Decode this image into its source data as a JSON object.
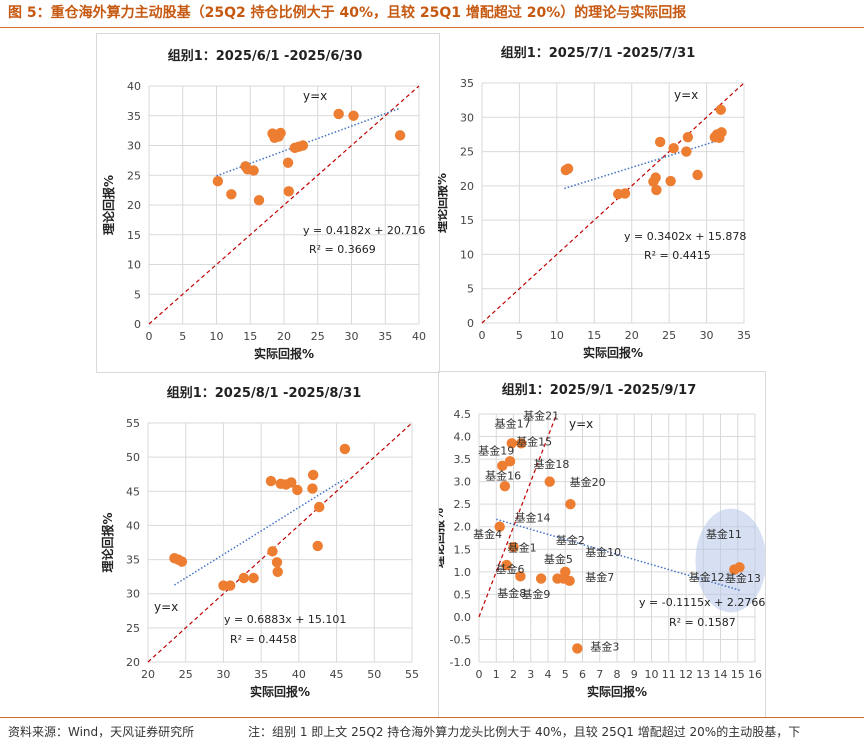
{
  "header": {
    "title": "图 5：重仓海外算力主动股基（25Q2 持仓比例大于 40%，且较 25Q1 增配超过 20%）的理论与实际回报"
  },
  "footer": {
    "source": "资料来源：Wind，天风证券研究所",
    "note": "注：组别 1 即上文 25Q2 持仓海外算力龙头比例大于 40%，且较 25Q1 增配超过 20%的主动股基，下"
  },
  "colors": {
    "accent": "#c65911",
    "point": "#ed7d31",
    "diag": "#c00000",
    "trend": "#4472c4",
    "highlight": "#b4c7e7"
  },
  "chart_data": [
    {
      "type": "scatter",
      "title": "组别1：2025/6/1 -2025/6/30",
      "xlabel": "实际回报%",
      "ylabel": "理论回报%",
      "xlim": [
        0,
        40
      ],
      "ylim": [
        0,
        40
      ],
      "xstep": 5,
      "ystep": 5,
      "diag_label": "y=x",
      "equation": "y = 0.4182x + 20.716",
      "r2": "R² = 0.3669",
      "trend": {
        "slope": 0.4182,
        "intercept": 20.716,
        "x": [
          10,
          37
        ]
      },
      "points": [
        [
          10.2,
          24
        ],
        [
          12.2,
          21.8
        ],
        [
          14.3,
          26.5
        ],
        [
          14.6,
          26
        ],
        [
          15.5,
          25.8
        ],
        [
          16.3,
          20.8
        ],
        [
          18.3,
          32
        ],
        [
          18.6,
          31.3
        ],
        [
          18.9,
          31.8
        ],
        [
          19.2,
          31.5
        ],
        [
          19.5,
          32.1
        ],
        [
          20.6,
          27.1
        ],
        [
          20.7,
          22.3
        ],
        [
          21.6,
          29.6
        ],
        [
          22.2,
          29.8
        ],
        [
          22.8,
          30
        ],
        [
          28.1,
          35.3
        ],
        [
          30.3,
          35
        ],
        [
          37.2,
          31.7
        ]
      ],
      "labels": []
    },
    {
      "type": "scatter",
      "title": "组别1：2025/7/1 -2025/7/31",
      "xlabel": "实际回报%",
      "ylabel": "理论回报%",
      "xlim": [
        0,
        35
      ],
      "ylim": [
        0,
        35
      ],
      "xstep": 5,
      "ystep": 5,
      "diag_label": "y=x",
      "equation": "y = 0.3402x + 15.878",
      "r2": "R² = 0.4415",
      "trend": {
        "slope": 0.3402,
        "intercept": 15.878,
        "x": [
          11,
          32
        ]
      },
      "points": [
        [
          11.2,
          22.3
        ],
        [
          11.5,
          22.5
        ],
        [
          18.2,
          18.8
        ],
        [
          19.1,
          18.9
        ],
        [
          22.9,
          20.6
        ],
        [
          23.2,
          21.2
        ],
        [
          23.3,
          19.4
        ],
        [
          23.8,
          26.4
        ],
        [
          25.2,
          20.7
        ],
        [
          25.6,
          25.5
        ],
        [
          27.3,
          25
        ],
        [
          27.5,
          27.1
        ],
        [
          28.8,
          21.6
        ],
        [
          31.1,
          27.1
        ],
        [
          31.4,
          27.5
        ],
        [
          31.7,
          27
        ],
        [
          31.9,
          31.1
        ],
        [
          32,
          27.8
        ]
      ],
      "labels": []
    },
    {
      "type": "scatter",
      "title": "组别1：2025/8/1 -2025/8/31",
      "xlabel": "实际回报%",
      "ylabel": "理论回报%",
      "xlim": [
        20,
        55
      ],
      "ylim": [
        20,
        55
      ],
      "xstep": 5,
      "ystep": 5,
      "diag_label": "y=x",
      "equation": "y = 0.6883x + 15.101",
      "r2": "R² = 0.4458",
      "trend": {
        "slope": 0.6883,
        "intercept": 15.101,
        "x": [
          23.5,
          46
        ]
      },
      "points": [
        [
          23.5,
          35.2
        ],
        [
          24,
          35
        ],
        [
          24.5,
          34.7
        ],
        [
          30,
          31.2
        ],
        [
          30.9,
          31.2
        ],
        [
          32.7,
          32.3
        ],
        [
          34,
          32.3
        ],
        [
          36.3,
          46.5
        ],
        [
          36.5,
          36.2
        ],
        [
          37.1,
          34.6
        ],
        [
          37.2,
          33.2
        ],
        [
          37.6,
          46.1
        ],
        [
          38.3,
          46
        ],
        [
          39,
          46.3
        ],
        [
          39.8,
          45.2
        ],
        [
          41.8,
          45.4
        ],
        [
          41.9,
          47.4
        ],
        [
          42.5,
          37
        ],
        [
          42.7,
          42.7
        ],
        [
          46.1,
          51.2
        ]
      ],
      "labels": []
    },
    {
      "type": "scatter",
      "title": "组别1：2025/9/1 -2025/9/17",
      "xlabel": "实际回报%",
      "ylabel": "理论回报%",
      "xlim": [
        0,
        16
      ],
      "ylim": [
        -1.0,
        4.5
      ],
      "xstep": 1,
      "ystep": 0.5,
      "ydec": 1,
      "diag_label": "y=x",
      "equation": "y = -0.1115x + 2.2766",
      "r2": "R² = 0.1587",
      "trend": {
        "slope": -0.1115,
        "intercept": 2.2766,
        "x": [
          1.0,
          15.2
        ]
      },
      "highlight": {
        "cx": 14.6,
        "cy": 1.25,
        "rx": 2.05,
        "ry": 1.15
      },
      "points": [
        [
          1.2,
          2.0
        ],
        [
          1.35,
          3.35
        ],
        [
          1.5,
          2.9
        ],
        [
          1.6,
          1.15
        ],
        [
          1.8,
          3.45
        ],
        [
          1.9,
          3.85
        ],
        [
          2.0,
          1.55
        ],
        [
          2.4,
          0.9
        ],
        [
          2.45,
          3.85
        ],
        [
          3.6,
          0.85
        ],
        [
          4.1,
          3.0
        ],
        [
          4.55,
          0.85
        ],
        [
          4.9,
          0.85
        ],
        [
          5.0,
          1.0
        ],
        [
          5.25,
          0.8
        ],
        [
          5.3,
          2.5
        ],
        [
          5.7,
          -0.7
        ],
        [
          14.8,
          1.05
        ],
        [
          15.1,
          1.1
        ]
      ],
      "labels": [
        {
          "text": "基金21",
          "x": 3.6,
          "y": 4.38
        },
        {
          "text": "基金17",
          "x": 1.95,
          "y": 4.2
        },
        {
          "text": "基金15",
          "x": 3.2,
          "y": 3.8
        },
        {
          "text": "基金19",
          "x": 1.0,
          "y": 3.6
        },
        {
          "text": "基金18",
          "x": 4.2,
          "y": 3.3
        },
        {
          "text": "基金16",
          "x": 1.4,
          "y": 3.05
        },
        {
          "text": "基金20",
          "x": 6.3,
          "y": 2.9
        },
        {
          "text": "基金14",
          "x": 3.1,
          "y": 2.12
        },
        {
          "text": "基金4",
          "x": 0.5,
          "y": 1.75
        },
        {
          "text": "基金2",
          "x": 5.3,
          "y": 1.62
        },
        {
          "text": "基金1",
          "x": 2.5,
          "y": 1.45
        },
        {
          "text": "基金10",
          "x": 7.2,
          "y": 1.35
        },
        {
          "text": "基金5",
          "x": 4.6,
          "y": 1.2
        },
        {
          "text": "基金6",
          "x": 1.8,
          "y": 0.97
        },
        {
          "text": "基金7",
          "x": 7.0,
          "y": 0.8
        },
        {
          "text": "基金12",
          "x": 13.2,
          "y": 0.8
        },
        {
          "text": "基金13",
          "x": 15.3,
          "y": 0.77
        },
        {
          "text": "基金11",
          "x": 14.2,
          "y": 1.75
        },
        {
          "text": "基金8",
          "x": 1.9,
          "y": 0.44
        },
        {
          "text": "基金9",
          "x": 3.3,
          "y": 0.42
        },
        {
          "text": "基金3",
          "x": 7.3,
          "y": -0.75
        }
      ]
    }
  ]
}
